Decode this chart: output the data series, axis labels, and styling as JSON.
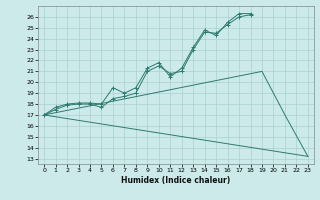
{
  "xlabel": "Humidex (Indice chaleur)",
  "bg_color": "#cceaea",
  "line_color": "#2d7a6e",
  "grid_color": "#aacfcf",
  "xlim": [
    -0.5,
    23.5
  ],
  "ylim": [
    12.5,
    27.0
  ],
  "yticks": [
    13,
    14,
    15,
    16,
    17,
    18,
    19,
    20,
    21,
    22,
    23,
    24,
    25,
    26
  ],
  "xticks": [
    0,
    1,
    2,
    3,
    4,
    5,
    6,
    7,
    8,
    9,
    10,
    11,
    12,
    13,
    14,
    15,
    16,
    17,
    18,
    19,
    20,
    21,
    22,
    23
  ],
  "series": [
    {
      "x": [
        0,
        1,
        2,
        3,
        4,
        5,
        6,
        7,
        8,
        9,
        10,
        11,
        12,
        13,
        14,
        15,
        16,
        17,
        18
      ],
      "y": [
        17.0,
        17.7,
        18.0,
        18.1,
        18.1,
        18.0,
        19.5,
        19.0,
        19.5,
        21.3,
        21.8,
        20.5,
        21.3,
        23.2,
        24.8,
        24.3,
        25.5,
        26.3,
        26.3
      ],
      "has_markers": true
    },
    {
      "x": [
        0,
        1,
        2,
        3,
        4,
        5,
        6,
        7,
        8,
        9,
        10,
        11,
        12,
        13,
        14,
        15,
        16,
        17,
        18
      ],
      "y": [
        17.0,
        17.5,
        17.9,
        18.0,
        18.0,
        17.7,
        18.5,
        18.7,
        19.0,
        21.0,
        21.5,
        20.8,
        21.0,
        23.0,
        24.6,
        24.5,
        25.3,
        26.0,
        26.2
      ],
      "has_markers": true
    },
    {
      "x": [
        0,
        23
      ],
      "y": [
        17.0,
        13.2
      ],
      "has_markers": false
    },
    {
      "x": [
        0,
        19,
        21,
        23
      ],
      "y": [
        17.0,
        21.0,
        17.0,
        13.2
      ],
      "has_markers": false
    }
  ]
}
